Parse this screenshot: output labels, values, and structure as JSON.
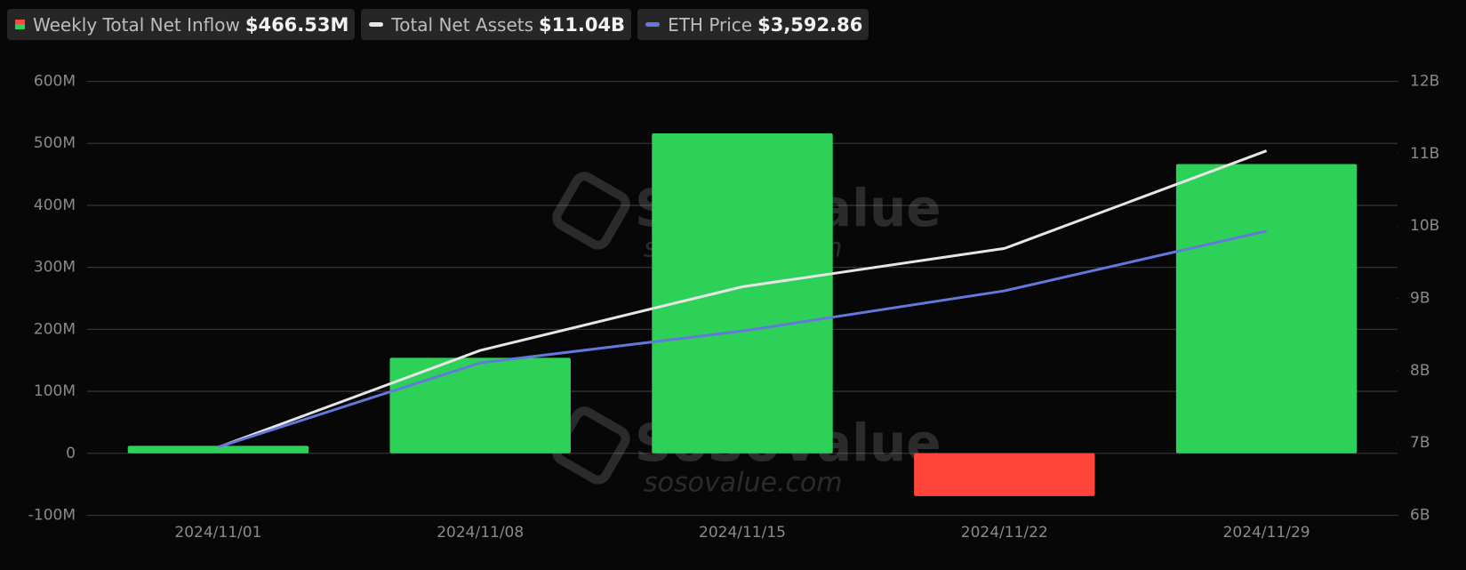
{
  "chart_data": {
    "type": "bar",
    "categories": [
      "2024/11/01",
      "2024/11/08",
      "2024/11/15",
      "2024/11/22",
      "2024/11/29"
    ],
    "series": [
      {
        "name": "Weekly Total Net Inflow",
        "type": "bar",
        "color": "#2ed158",
        "negative_color": "#ff453a",
        "values": [
          12,
          154,
          516,
          -69,
          466.53
        ],
        "legend_value": "$466.53M"
      },
      {
        "name": "Total Net Assets",
        "type": "line",
        "axis": "y2",
        "color": "#e6e6e6",
        "values": [
          6.94,
          8.28,
          9.16,
          9.69,
          11.04
        ],
        "legend_value": "$11.04B"
      },
      {
        "name": "ETH Price",
        "type": "line",
        "axis": "y3",
        "color": "#6477dc",
        "values": [
          2513,
          2934,
          3093,
          3294,
          3592.86
        ],
        "legend_value": "$3,592.86"
      }
    ],
    "ylim": [
      -100,
      600
    ],
    "yticks": [
      {
        "value": -100,
        "label": "-100M"
      },
      0,
      {
        "value": 100,
        "label": "100M"
      },
      {
        "value": 200,
        "label": "200M"
      },
      {
        "value": 300,
        "label": "300M"
      },
      {
        "value": 400,
        "label": "400M"
      },
      {
        "value": 500,
        "label": "500M"
      },
      {
        "value": 600,
        "label": "600M"
      }
    ],
    "y2lim": [
      6,
      12
    ],
    "y2ticks": [
      {
        "value": 6,
        "label": "6B"
      },
      {
        "value": 7,
        "label": "7B"
      },
      {
        "value": 8,
        "label": "8B"
      },
      {
        "value": 9,
        "label": "9B"
      },
      {
        "value": 10,
        "label": "10B"
      },
      {
        "value": 11,
        "label": "11B"
      },
      {
        "value": 12,
        "label": "12B"
      }
    ],
    "y3lim": [
      2172,
      4341
    ],
    "grid": true,
    "watermark": [
      "SoSoValue",
      "sosovalue.com"
    ]
  }
}
